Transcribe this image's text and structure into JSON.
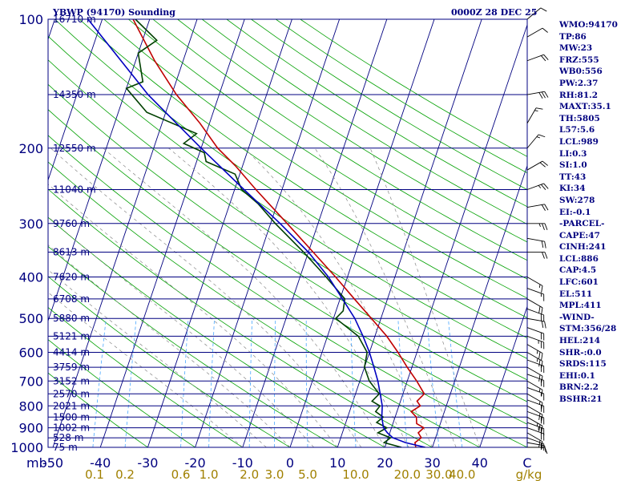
{
  "header": {
    "station": "YBWP (94170) Sounding",
    "time": "0000Z 28 DEC 25"
  },
  "indices": [
    "WMO:94170",
    "TP:86",
    "MW:23",
    "FRZ:555",
    "WB0:556",
    "PW:2.37",
    "RH:81.2",
    "MAXT:35.1",
    "TH:5805",
    "L57:5.6",
    "LCL:989",
    "LI:0.3",
    "SI:1.0",
    "TT:43",
    "KI:34",
    "SW:278",
    "EI:-0.1",
    "-PARCEL-",
    "CAPE:47",
    "CINH:241",
    "LCL:886",
    "CAP:4.5",
    "LFC:601",
    "EL:511",
    "MPL:411",
    "-WIND-",
    "STM:356/28",
    "HEL:214",
    "SHR-:0.0",
    "SRDS:115",
    "EHI:0.1",
    "BRN:2.2",
    "BSHR:21"
  ],
  "colors": {
    "frame": "#000080",
    "temperature": "#c00000",
    "dewpoint": "#004000",
    "parcel": "#0000c0",
    "dry_adiabat": "#00a000",
    "isotherm": "#000080",
    "mixing_ratio": "#4aa8ff",
    "moist_adiabat": "#888888",
    "text": "#000080",
    "mixing_label": "#a08000"
  },
  "chart_data": {
    "type": "line",
    "title": "YBWP (94170) Sounding 0000Z 28 DEC 25",
    "xlabel": "Temperature (C)",
    "ylabel": "mb",
    "xlim": [
      -50,
      50
    ],
    "ylim": [
      1000,
      100
    ],
    "pressure_ticks": [
      "100",
      "200",
      "300",
      "400",
      "500",
      "600",
      "700",
      "800",
      "900",
      "1000"
    ],
    "y_unit_label": "mb",
    "temperature_ticks": [
      "-50",
      "-40",
      "-30",
      "-20",
      "-10",
      "0",
      "10",
      "20",
      "30",
      "40",
      "C"
    ],
    "mixing_ratio_labels": [
      "0.1",
      "0.2",
      "0.6",
      "1.0",
      "2.0",
      "3.0",
      "5.0",
      "10.0",
      "20.0",
      "30.0",
      "40.0",
      "g/kg"
    ],
    "height_labels": [
      {
        "pressure": 100,
        "text": "16710 m"
      },
      {
        "pressure": 150,
        "text": "14350 m"
      },
      {
        "pressure": 200,
        "text": "12550 m"
      },
      {
        "pressure": 250,
        "text": "11040 m"
      },
      {
        "pressure": 300,
        "text": "9760 m"
      },
      {
        "pressure": 350,
        "text": "8613 m"
      },
      {
        "pressure": 400,
        "text": "7620 m"
      },
      {
        "pressure": 450,
        "text": "6708 m"
      },
      {
        "pressure": 500,
        "text": "5880 m"
      },
      {
        "pressure": 550,
        "text": "5121 m"
      },
      {
        "pressure": 600,
        "text": "4414 m"
      },
      {
        "pressure": 650,
        "text": "3759 m"
      },
      {
        "pressure": 700,
        "text": "3152 m"
      },
      {
        "pressure": 750,
        "text": "2570 m"
      },
      {
        "pressure": 800,
        "text": "2021 m"
      },
      {
        "pressure": 850,
        "text": "1500 m"
      },
      {
        "pressure": 900,
        "text": "1002 m"
      },
      {
        "pressure": 950,
        "text": "528 m"
      },
      {
        "pressure": 1000,
        "text": "75 m"
      }
    ],
    "series": [
      {
        "name": "Temperature",
        "points": [
          [
            1000,
            26.5
          ],
          [
            975,
            26.0
          ],
          [
            950,
            27.0
          ],
          [
            925,
            26.0
          ],
          [
            900,
            26.8
          ],
          [
            880,
            25.0
          ],
          [
            850,
            24.5
          ],
          [
            825,
            23.0
          ],
          [
            800,
            24.5
          ],
          [
            780,
            23.5
          ],
          [
            750,
            24.5
          ],
          [
            700,
            22.0
          ],
          [
            650,
            19.0
          ],
          [
            600,
            16.0
          ],
          [
            550,
            12.5
          ],
          [
            500,
            8.0
          ],
          [
            450,
            3.0
          ],
          [
            400,
            -2.5
          ],
          [
            350,
            -9.0
          ],
          [
            300,
            -16.5
          ],
          [
            250,
            -25.5
          ],
          [
            220,
            -31.5
          ],
          [
            200,
            -36.5
          ],
          [
            175,
            -42.0
          ],
          [
            150,
            -49.0
          ],
          [
            125,
            -56.0
          ],
          [
            100,
            -63.5
          ]
        ]
      },
      {
        "name": "Dew Point",
        "points": [
          [
            1000,
            23.5
          ],
          [
            975,
            19.5
          ],
          [
            950,
            20.5
          ],
          [
            925,
            17.5
          ],
          [
            900,
            19.0
          ],
          [
            875,
            16.5
          ],
          [
            850,
            17.5
          ],
          [
            825,
            15.5
          ],
          [
            800,
            16.0
          ],
          [
            780,
            14.0
          ],
          [
            750,
            15.0
          ],
          [
            700,
            12.0
          ],
          [
            650,
            10.0
          ],
          [
            600,
            9.5
          ],
          [
            550,
            6.5
          ],
          [
            500,
            0.5
          ],
          [
            480,
            1.5
          ],
          [
            450,
            1.0
          ],
          [
            400,
            -4.5
          ],
          [
            350,
            -11.0
          ],
          [
            300,
            -19.0
          ],
          [
            270,
            -24.0
          ],
          [
            250,
            -28.5
          ],
          [
            230,
            -31.0
          ],
          [
            215,
            -38.0
          ],
          [
            205,
            -39.0
          ],
          [
            195,
            -44.0
          ],
          [
            185,
            -42.0
          ],
          [
            165,
            -54.0
          ],
          [
            145,
            -60.0
          ],
          [
            140,
            -57.0
          ],
          [
            120,
            -60.0
          ],
          [
            112,
            -57.0
          ],
          [
            100,
            -63.0
          ]
        ]
      },
      {
        "name": "Parcel",
        "points": [
          [
            1000,
            28.5
          ],
          [
            975,
            24.0
          ],
          [
            950,
            21.0
          ],
          [
            925,
            19.5
          ],
          [
            900,
            18.3
          ],
          [
            850,
            17.2
          ],
          [
            800,
            16.5
          ],
          [
            750,
            15.2
          ],
          [
            700,
            13.8
          ],
          [
            650,
            12.0
          ],
          [
            600,
            10.0
          ],
          [
            550,
            7.5
          ],
          [
            500,
            4.5
          ],
          [
            450,
            0.5
          ],
          [
            400,
            -4.0
          ],
          [
            350,
            -10.0
          ],
          [
            300,
            -18.0
          ],
          [
            250,
            -28.0
          ],
          [
            200,
            -40.0
          ],
          [
            150,
            -55.0
          ],
          [
            100,
            -73.0
          ]
        ]
      }
    ],
    "wind_barbs": [
      {
        "pressure": 1000,
        "direction": 90,
        "speed": 10
      },
      {
        "pressure": 975,
        "direction": 100,
        "speed": 15
      },
      {
        "pressure": 950,
        "direction": 110,
        "speed": 20
      },
      {
        "pressure": 925,
        "direction": 120,
        "speed": 20
      },
      {
        "pressure": 900,
        "direction": 110,
        "speed": 20
      },
      {
        "pressure": 875,
        "direction": 110,
        "speed": 25
      },
      {
        "pressure": 850,
        "direction": 120,
        "speed": 25
      },
      {
        "pressure": 825,
        "direction": 110,
        "speed": 20
      },
      {
        "pressure": 800,
        "direction": 120,
        "speed": 20
      },
      {
        "pressure": 775,
        "direction": 110,
        "speed": 20
      },
      {
        "pressure": 750,
        "direction": 120,
        "speed": 15
      },
      {
        "pressure": 725,
        "direction": 110,
        "speed": 15
      },
      {
        "pressure": 700,
        "direction": 120,
        "speed": 15
      },
      {
        "pressure": 675,
        "direction": 110,
        "speed": 20
      },
      {
        "pressure": 650,
        "direction": 120,
        "speed": 20
      },
      {
        "pressure": 625,
        "direction": 110,
        "speed": 20
      },
      {
        "pressure": 600,
        "direction": 120,
        "speed": 25
      },
      {
        "pressure": 575,
        "direction": 120,
        "speed": 25
      },
      {
        "pressure": 550,
        "direction": 110,
        "speed": 25
      },
      {
        "pressure": 525,
        "direction": 110,
        "speed": 20
      },
      {
        "pressure": 500,
        "direction": 100,
        "speed": 20
      },
      {
        "pressure": 475,
        "direction": 110,
        "speed": 20
      },
      {
        "pressure": 450,
        "direction": 120,
        "speed": 20
      },
      {
        "pressure": 425,
        "direction": 110,
        "speed": 15
      },
      {
        "pressure": 400,
        "direction": 120,
        "speed": 15
      },
      {
        "pressure": 350,
        "direction": 90,
        "speed": 20
      },
      {
        "pressure": 325,
        "direction": 100,
        "speed": 20
      },
      {
        "pressure": 300,
        "direction": 90,
        "speed": 25
      },
      {
        "pressure": 275,
        "direction": 80,
        "speed": 20
      },
      {
        "pressure": 250,
        "direction": 70,
        "speed": 25
      },
      {
        "pressure": 225,
        "direction": 60,
        "speed": 20
      },
      {
        "pressure": 200,
        "direction": 40,
        "speed": 15
      },
      {
        "pressure": 175,
        "direction": 30,
        "speed": 15
      },
      {
        "pressure": 150,
        "direction": 80,
        "speed": 30
      },
      {
        "pressure": 125,
        "direction": 70,
        "speed": 20
      },
      {
        "pressure": 110,
        "direction": 60,
        "speed": 10
      },
      {
        "pressure": 100,
        "direction": 50,
        "speed": 10
      }
    ]
  }
}
